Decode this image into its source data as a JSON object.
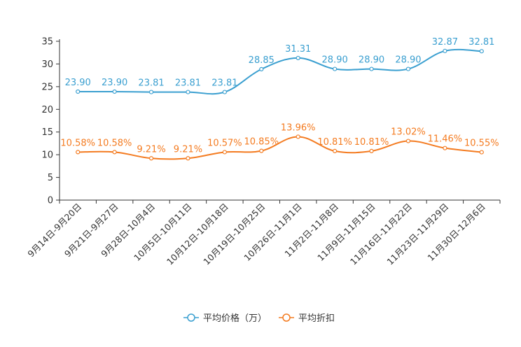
{
  "chart_data": {
    "type": "line",
    "title": "",
    "xlabel": "",
    "ylabel": "",
    "ylim": [
      0,
      35
    ],
    "yticks": [
      0,
      5,
      10,
      15,
      20,
      25,
      30,
      35
    ],
    "categories": [
      "9月14日-9月20日",
      "9月21日-9月27日",
      "9月28日-10月4日",
      "10月5日-10月11日",
      "10月12日-10月18日",
      "10月19日-10月25日",
      "10月26日-11月1日",
      "11月2日-11月8日",
      "11月9日-11月15日",
      "11月16日-11月22日",
      "11月23日-11月29日",
      "11月30日-12月6日"
    ],
    "series": [
      {
        "name": "平均价格（万）",
        "color": "#3a9fd0",
        "values": [
          23.9,
          23.9,
          23.81,
          23.81,
          23.81,
          28.85,
          31.31,
          28.9,
          28.9,
          28.9,
          32.87,
          32.81
        ],
        "labels": [
          "23.90",
          "23.90",
          "23.81",
          "23.81",
          "23.81",
          "28.85",
          "31.31",
          "28.90",
          "28.90",
          "28.90",
          "32.87",
          "32.81"
        ]
      },
      {
        "name": "平均折扣",
        "color": "#f47b20",
        "values": [
          10.58,
          10.58,
          9.21,
          9.21,
          10.57,
          10.85,
          13.96,
          10.81,
          10.81,
          13.02,
          11.46,
          10.55
        ],
        "labels": [
          "10.58%",
          "10.58%",
          "9.21%",
          "9.21%",
          "10.57%",
          "10.85%",
          "13.96%",
          "10.81%",
          "10.81%",
          "13.02%",
          "11.46%",
          "10.55%"
        ]
      }
    ],
    "legend_position": "bottom-center",
    "grid": false
  }
}
